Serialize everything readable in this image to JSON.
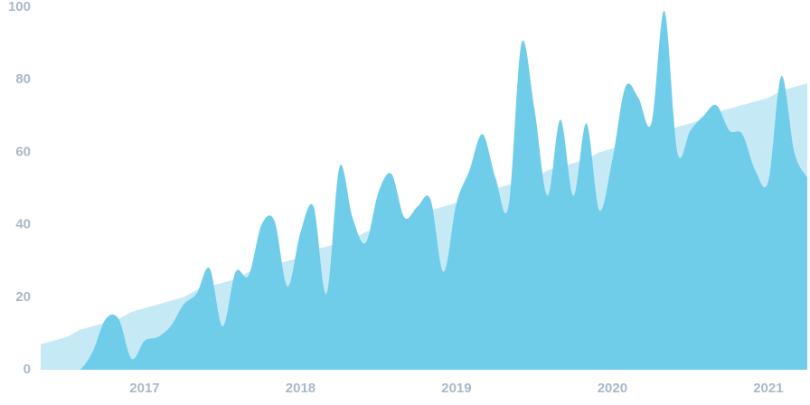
{
  "chart_data": {
    "type": "area",
    "categories": [
      null,
      null,
      null,
      null,
      null,
      null,
      null,
      null,
      "2017",
      null,
      null,
      null,
      null,
      null,
      null,
      null,
      null,
      null,
      null,
      null,
      "2018",
      null,
      null,
      null,
      null,
      null,
      null,
      null,
      null,
      null,
      null,
      null,
      "2019",
      null,
      null,
      null,
      null,
      null,
      null,
      null,
      null,
      null,
      null,
      null,
      "2020",
      null,
      null,
      null,
      null,
      null,
      null,
      null,
      null,
      null,
      null,
      null,
      "2021",
      null,
      null,
      null
    ],
    "series": [
      {
        "color": "#c5eaf6",
        "smooth": false,
        "values": [
          7,
          8,
          9,
          11,
          12,
          13,
          14,
          16,
          17,
          18,
          19,
          20,
          22,
          23,
          24,
          25,
          27,
          28,
          29,
          30,
          31,
          33,
          34,
          35,
          36,
          38,
          39,
          40,
          41,
          42,
          44,
          45,
          46,
          47,
          49,
          50,
          51,
          52,
          53,
          55,
          56,
          57,
          58,
          60,
          61,
          62,
          63,
          64,
          66,
          67,
          68,
          69,
          71,
          72,
          73,
          74,
          75,
          77,
          78,
          79
        ]
      },
      {
        "color": "#70cdea",
        "smooth": true,
        "values": [
          0,
          0,
          0,
          0,
          5,
          14,
          14,
          3,
          8,
          9,
          12,
          18,
          21,
          28,
          12,
          27,
          26,
          40,
          41,
          23,
          38,
          45,
          21,
          56,
          42,
          35,
          49,
          54,
          42,
          45,
          47,
          27,
          46,
          55,
          65,
          53,
          45,
          90,
          72,
          48,
          69,
          48,
          68,
          44,
          58,
          78,
          75,
          68,
          99,
          60,
          66,
          70,
          73,
          66,
          65,
          55,
          52,
          81,
          60,
          53
        ]
      }
    ],
    "ylim": [
      0,
      100
    ],
    "yticks": [
      0,
      20,
      40,
      60,
      80,
      100
    ],
    "grid": false
  }
}
